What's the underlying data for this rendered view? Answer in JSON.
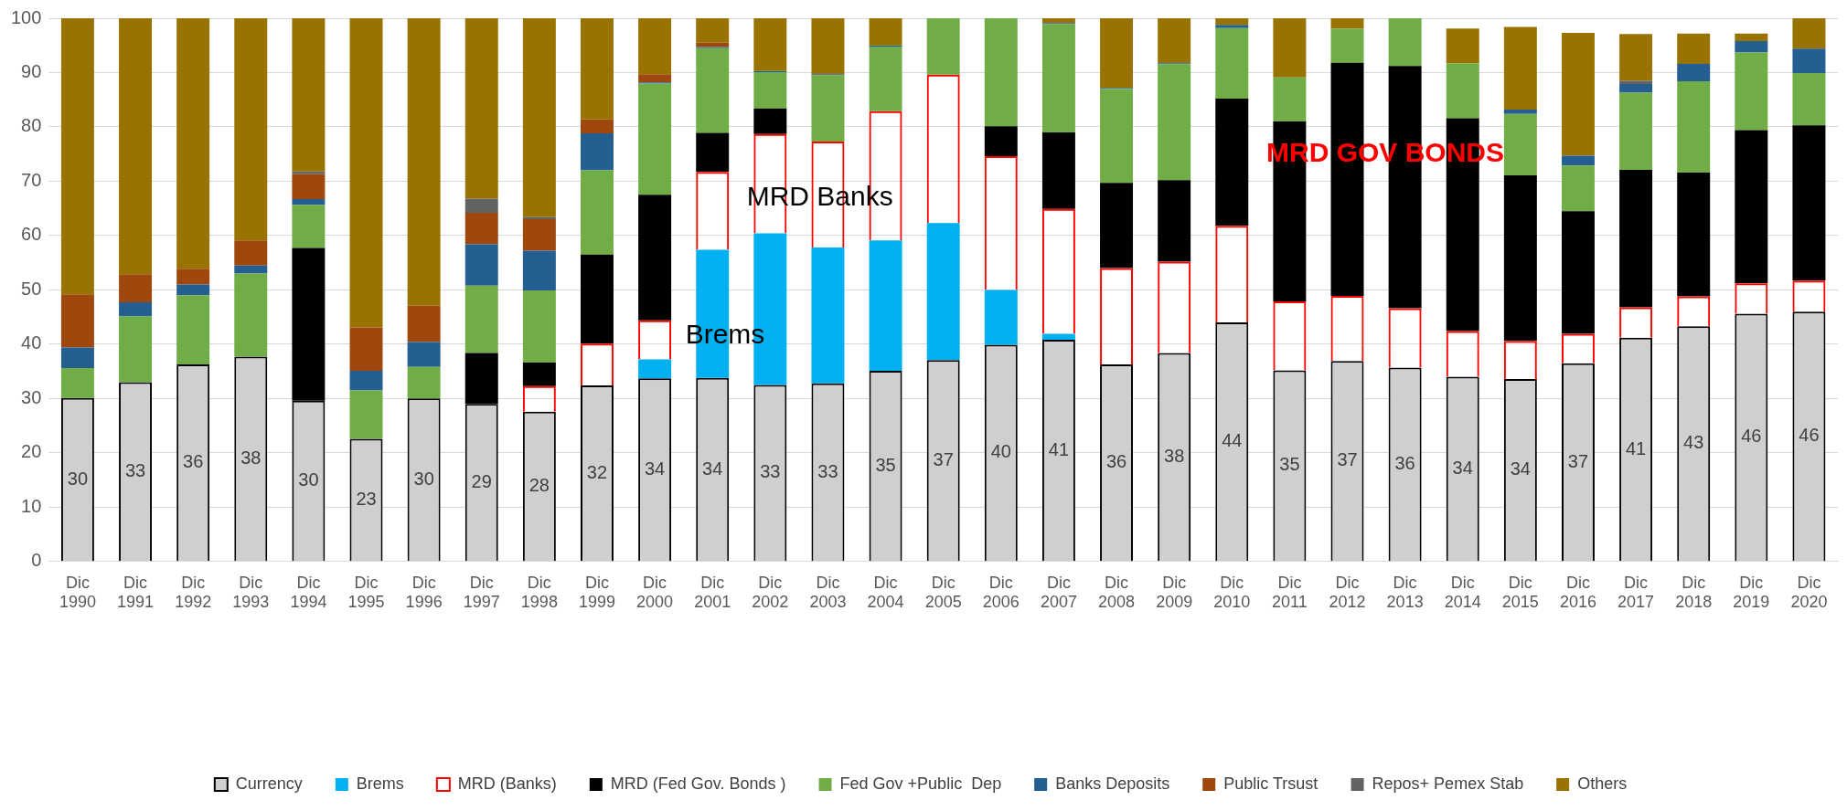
{
  "chart_data": {
    "type": "bar",
    "stacked": true,
    "grid": "y",
    "legend": "bottom",
    "ylim": [
      0,
      100
    ],
    "yticks": [
      0,
      10,
      20,
      30,
      40,
      50,
      60,
      70,
      80,
      90,
      100
    ],
    "categories": [
      "Dic 1990",
      "Dic 1991",
      "Dic 1992",
      "Dic 1993",
      "Dic 1994",
      "Dic 1995",
      "Dic 1996",
      "Dic 1997",
      "Dic 1998",
      "Dic 1999",
      "Dic 2000",
      "Dic 2001",
      "Dic 2002",
      "Dic 2003",
      "Dic 2004",
      "Dic 2005",
      "Dic 2006",
      "Dic 2007",
      "Dic 2008",
      "Dic 2009",
      "Dic 2010",
      "Dic 2011",
      "Dic 2012",
      "Dic 2013",
      "Dic 2014",
      "Dic 2015",
      "Dic 2016",
      "Dic 2017",
      "Dic 2018",
      "Dic 2019",
      "Dic 2020"
    ],
    "series": [
      {
        "name": "Currency",
        "color": "#d0cece",
        "values": [
          30.1,
          33.0,
          36.3,
          37.7,
          29.6,
          22.6,
          30.0,
          29.0,
          27.6,
          32.4,
          33.7,
          33.8,
          32.5,
          32.8,
          35.1,
          37.1,
          39.9,
          40.8,
          36.3,
          38.4,
          44.0,
          35.2,
          36.9,
          35.7,
          34.0,
          33.6,
          36.5,
          41.2,
          43.3,
          45.6,
          46.0
        ],
        "value_labels": [
          "30",
          "33",
          "36",
          "38",
          "30",
          "23",
          "30",
          "29",
          "28",
          "32",
          "34",
          "34",
          "33",
          "33",
          "35",
          "37",
          "40",
          "41",
          "36",
          "38",
          "44",
          "35",
          "37",
          "36",
          "34",
          "34",
          "37",
          "41",
          "43",
          "46",
          "46"
        ]
      },
      {
        "name": "Brems",
        "color": "#00b0f0",
        "values": [
          0,
          0,
          0,
          0,
          0,
          0,
          0,
          0,
          0,
          0,
          3.5,
          23.6,
          27.9,
          25.0,
          24.0,
          25.2,
          10.1,
          1.1,
          0,
          0,
          0,
          0,
          0,
          0,
          0,
          0,
          0,
          0,
          0,
          0,
          0
        ]
      },
      {
        "name": "MRD (Banks)",
        "color": "#ff0000",
        "values": [
          0,
          0,
          0,
          0,
          0,
          0,
          0,
          0,
          4.7,
          7.7,
          7.2,
          14.3,
          18.3,
          19.5,
          23.8,
          27.3,
          24.6,
          23.0,
          17.7,
          16.8,
          17.8,
          12.7,
          12.0,
          10.9,
          8.4,
          7.0,
          5.4,
          5.6,
          5.5,
          5.6,
          5.7
        ]
      },
      {
        "name": "MRD (Fed Gov. Bonds )",
        "color": "#000000",
        "values": [
          0,
          0,
          0,
          0,
          28.1,
          0,
          0,
          9.4,
          4.3,
          16.4,
          23.1,
          7.2,
          4.7,
          0,
          0,
          0,
          5.5,
          14.1,
          15.7,
          15.0,
          23.4,
          33.1,
          42.9,
          44.6,
          39.2,
          30.5,
          22.6,
          25.3,
          22.8,
          28.2,
          28.6
        ]
      },
      {
        "name": "Fed Gov +Public  Dep",
        "color": "#70ad47",
        "values": [
          5.5,
          12.1,
          12.7,
          15.3,
          7.9,
          8.9,
          5.8,
          12.4,
          13.3,
          15.5,
          20.5,
          15.6,
          6.7,
          12.2,
          11.9,
          10.4,
          19.9,
          19.9,
          17.3,
          21.3,
          13.0,
          8.1,
          6.3,
          8.8,
          10.1,
          11.3,
          8.4,
          14.2,
          16.8,
          14.3,
          9.6
        ]
      },
      {
        "name": "Banks Deposits",
        "color": "#255e91",
        "values": [
          3.8,
          2.6,
          2.0,
          1.5,
          1.1,
          3.6,
          4.6,
          7.6,
          7.3,
          6.8,
          0.2,
          0.2,
          0.2,
          0.2,
          0.2,
          0,
          0,
          0.2,
          0.2,
          0.2,
          0.6,
          0,
          0,
          0,
          0,
          0.8,
          1.8,
          1.6,
          3.2,
          2.1,
          4.5
        ]
      },
      {
        "name": "Public Trsust",
        "color": "#9e480e",
        "values": [
          9.8,
          5.2,
          2.9,
          4.6,
          4.6,
          8.0,
          6.7,
          5.8,
          5.8,
          2.6,
          1.5,
          0.8,
          0,
          0,
          0,
          0,
          0,
          0,
          0,
          0,
          0,
          0,
          0,
          0,
          0,
          0,
          0,
          0,
          0,
          0,
          0
        ]
      },
      {
        "name": "Repos+ Pemex Stab",
        "color": "#636363",
        "values": [
          0,
          0,
          0,
          0,
          0.5,
          0,
          0,
          2.6,
          0.4,
          0,
          0,
          0,
          0,
          0,
          0,
          0,
          0,
          0,
          0,
          0,
          0,
          0,
          0,
          0,
          0,
          0,
          0,
          0.6,
          0,
          0,
          0
        ]
      },
      {
        "name": "Others",
        "color": "#997300",
        "values": [
          50.8,
          47.1,
          46.1,
          40.9,
          28.2,
          56.9,
          52.9,
          33.2,
          36.6,
          18.6,
          10.3,
          4.5,
          9.7,
          10.3,
          5.0,
          0,
          0,
          0.9,
          12.8,
          8.3,
          1.2,
          10.9,
          1.9,
          0,
          6.4,
          15.2,
          22.6,
          8.6,
          5.6,
          1.4,
          5.6
        ]
      }
    ],
    "annotations": [
      "MRD Banks",
      "Brems",
      "MRD GOV BONDS"
    ]
  }
}
